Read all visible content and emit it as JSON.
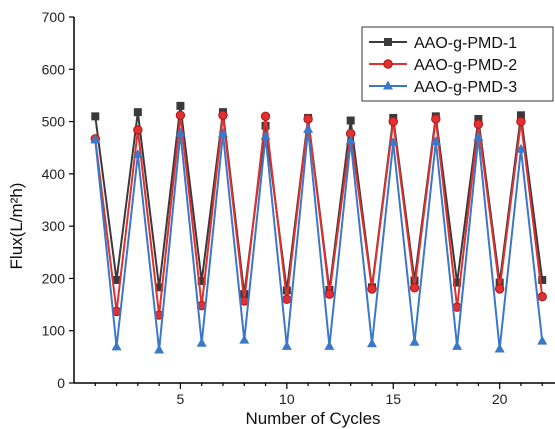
{
  "chart_data": {
    "type": "line",
    "xlabel": "Number of Cycles",
    "ylabel": "Flux(L/m²h)",
    "xlim": [
      0,
      22.6
    ],
    "ylim": [
      0,
      700
    ],
    "xticks": [
      5,
      10,
      15,
      20
    ],
    "yticks": [
      0,
      100,
      200,
      300,
      400,
      500,
      600,
      700
    ],
    "grid": false,
    "legend_position": "top-right",
    "x": [
      1,
      2,
      3,
      4,
      5,
      6,
      7,
      8,
      9,
      10,
      11,
      12,
      13,
      14,
      15,
      16,
      17,
      18,
      19,
      20,
      21,
      22
    ],
    "series": [
      {
        "name": "AAO-g-PMD-1",
        "color": "#3a3a3a",
        "marker": "square",
        "values": [
          510,
          197,
          518,
          183,
          530,
          195,
          518,
          170,
          492,
          177,
          507,
          178,
          502,
          183,
          507,
          196,
          510,
          192,
          505,
          192,
          512,
          197
        ]
      },
      {
        "name": "AAO-g-PMD-2",
        "color": "#e03030",
        "marker": "circle",
        "values": [
          467,
          137,
          484,
          130,
          512,
          148,
          512,
          157,
          510,
          160,
          505,
          170,
          477,
          180,
          500,
          182,
          505,
          145,
          495,
          180,
          500,
          165
        ]
      },
      {
        "name": "AAO-g-PMD-3",
        "color": "#3c78c8",
        "marker": "triangle",
        "values": [
          465,
          69,
          437,
          63,
          478,
          76,
          477,
          82,
          472,
          70,
          485,
          70,
          463,
          75,
          460,
          78,
          462,
          70,
          470,
          65,
          447,
          80
        ]
      }
    ]
  }
}
